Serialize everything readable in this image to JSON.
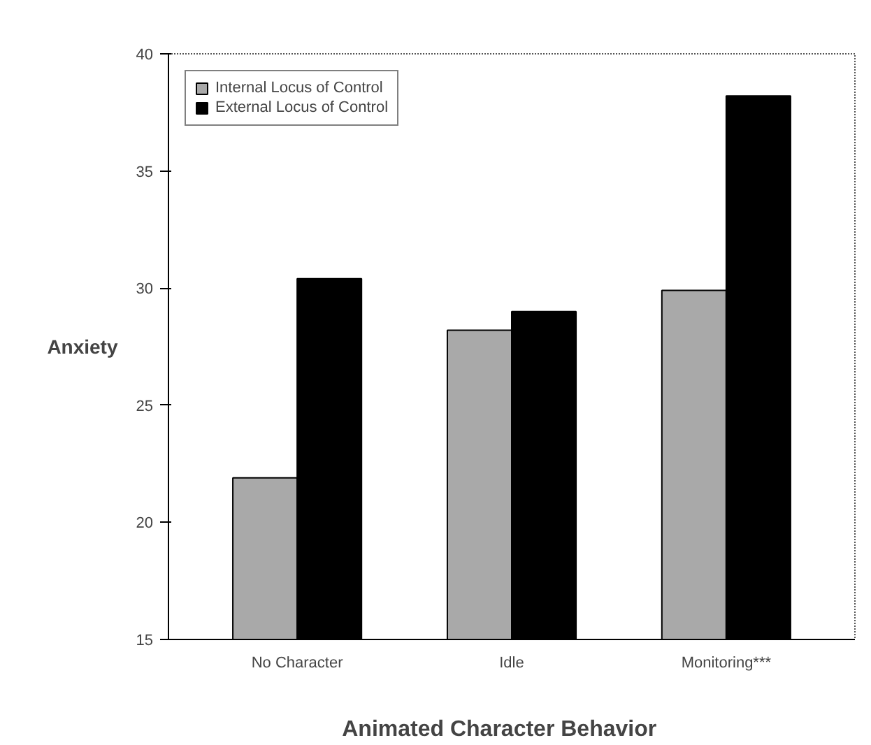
{
  "chart_data": {
    "type": "bar",
    "ylabel": "Anxiety",
    "xlabel": "Animated   Character   Behavior",
    "categories": [
      "No Character",
      "Idle",
      "Monitoring***"
    ],
    "series": [
      {
        "name": "Internal Locus of Control",
        "color": "#a9a9a9",
        "values": [
          21.9,
          28.2,
          29.9
        ]
      },
      {
        "name": "External Locus of Control",
        "color": "#000000",
        "values": [
          30.4,
          29.0,
          38.2
        ]
      }
    ],
    "ylim": [
      15,
      40
    ],
    "yticks": [
      15,
      20,
      25,
      30,
      35,
      40
    ],
    "grid": false,
    "legend": "top left"
  }
}
